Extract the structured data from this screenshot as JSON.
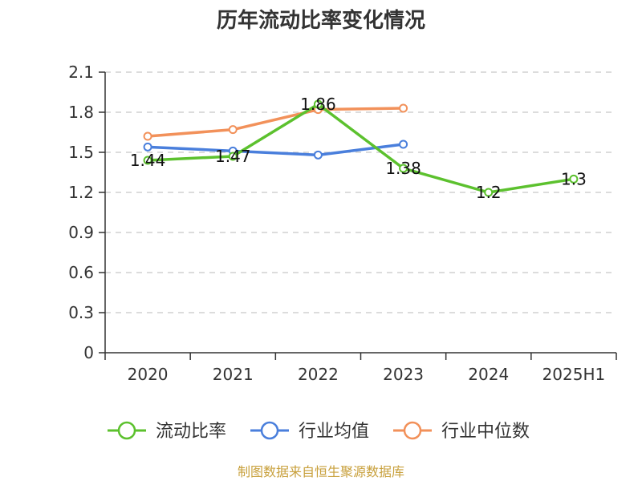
{
  "colors": {
    "current_ratio": "#5cc12e",
    "industry_avg": "#4a7fdc",
    "industry_median": "#f2915a",
    "grid": "#c8c8c8",
    "axis": "#333333",
    "source": "#c8a03c"
  },
  "source_text": "制图数据来自恒生聚源数据库",
  "chart_data": {
    "type": "line",
    "title": "历年流动比率变化情况",
    "xlabel": "",
    "ylabel": "",
    "categories": [
      "2020",
      "2021",
      "2022",
      "2023",
      "2024",
      "2025H1"
    ],
    "ylim": [
      0,
      2.1
    ],
    "yticks": [
      "0",
      "0.3",
      "0.6",
      "0.9",
      "1.2",
      "1.5",
      "1.8",
      "2.1"
    ],
    "grid": true,
    "legend_position": "bottom",
    "series": [
      {
        "name": "流动比率",
        "color": "#5cc12e",
        "values": [
          1.44,
          1.47,
          1.86,
          1.38,
          1.2,
          1.3
        ],
        "labels": [
          "1.44",
          "1.47",
          "1.86",
          "1.38",
          "1.2",
          "1.3"
        ]
      },
      {
        "name": "行业均值",
        "color": "#4a7fdc",
        "values": [
          1.54,
          1.51,
          1.48,
          1.56,
          null,
          null
        ]
      },
      {
        "name": "行业中位数",
        "color": "#f2915a",
        "values": [
          1.62,
          1.67,
          1.82,
          1.83,
          null,
          null
        ]
      }
    ]
  }
}
